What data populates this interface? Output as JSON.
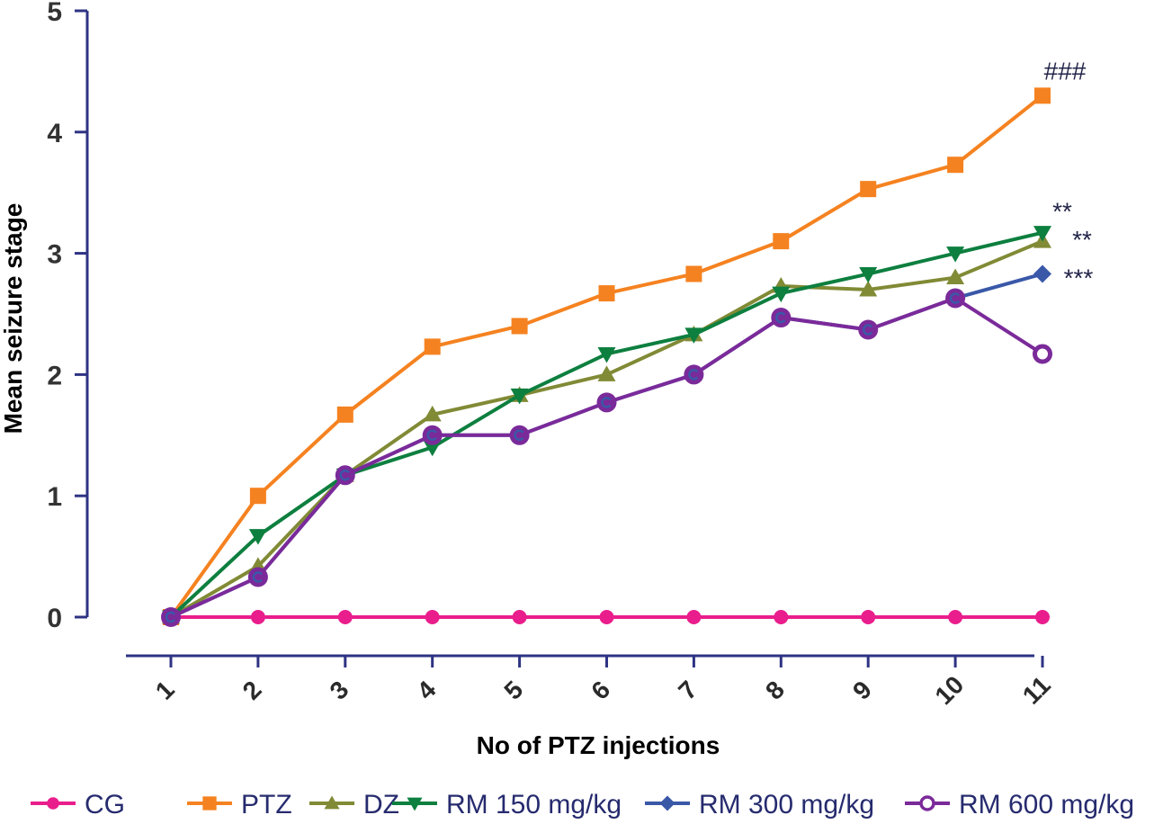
{
  "chart_data": {
    "type": "line",
    "title": "",
    "xlabel": "No of PTZ injections",
    "ylabel": "Mean seizure stage",
    "x": [
      1,
      2,
      3,
      4,
      5,
      6,
      7,
      8,
      9,
      10,
      11
    ],
    "x_tick_labels": [
      "1",
      "2",
      "3",
      "4",
      "5",
      "6",
      "7",
      "8",
      "9",
      "10",
      "11"
    ],
    "y_ticks": [
      0,
      1,
      2,
      3,
      4,
      5
    ],
    "y_tick_labels": [
      "0",
      "1",
      "2",
      "3",
      "4",
      "5"
    ],
    "ylim": [
      0,
      5
    ],
    "xlim": [
      0.5,
      11.5
    ],
    "grid": false,
    "legend_position": "bottom",
    "axis_color": "#2E3383",
    "series": [
      {
        "name": "CG",
        "color": "#E91E8C",
        "marker": "circle",
        "values": [
          0,
          0,
          0,
          0,
          0,
          0,
          0,
          0,
          0,
          0,
          0
        ]
      },
      {
        "name": "PTZ",
        "color": "#F58220",
        "marker": "square",
        "values": [
          0,
          1.0,
          1.67,
          2.23,
          2.4,
          2.67,
          2.83,
          3.1,
          3.53,
          3.73,
          4.3
        ]
      },
      {
        "name": "DZ",
        "color": "#818A35",
        "marker": "triangle-up",
        "values": [
          0,
          0.42,
          1.17,
          1.67,
          1.83,
          2.0,
          2.33,
          2.73,
          2.7,
          2.8,
          3.1
        ]
      },
      {
        "name": "RM 150 mg/kg",
        "color": "#0D7F3F",
        "marker": "triangle-down",
        "values": [
          0,
          0.67,
          1.17,
          1.4,
          1.83,
          2.17,
          2.33,
          2.67,
          2.83,
          3.0,
          3.17
        ]
      },
      {
        "name": "RM 300 mg/kg",
        "color": "#3A58A8",
        "marker": "diamond",
        "values": [
          0,
          0.33,
          1.17,
          1.5,
          1.5,
          1.77,
          2.0,
          2.47,
          2.37,
          2.63,
          2.83
        ]
      },
      {
        "name": "RM 600 mg/kg",
        "color": "#7B2A9A",
        "marker": "circle-open",
        "values": [
          0,
          0.33,
          1.17,
          1.5,
          1.5,
          1.77,
          2.0,
          2.47,
          2.37,
          2.63,
          2.17
        ]
      }
    ],
    "annotations": [
      {
        "text": "###",
        "series": "PTZ",
        "x": 11
      },
      {
        "text": "**",
        "series": "RM 150 mg/kg",
        "x": 11
      },
      {
        "text": "**",
        "series": "DZ",
        "x": 11
      },
      {
        "text": "***",
        "series": "RM 300 mg/kg",
        "x": 11
      }
    ]
  }
}
